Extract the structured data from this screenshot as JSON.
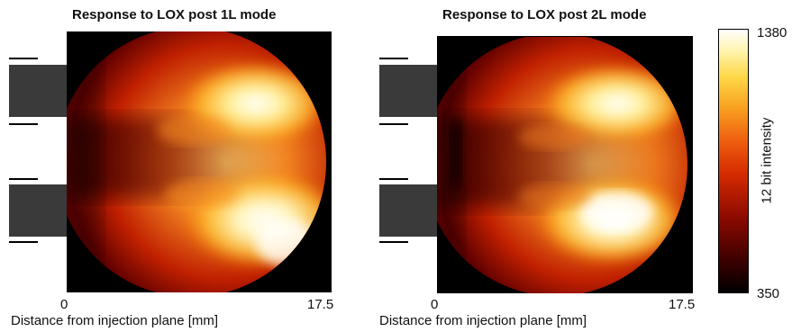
{
  "panels": [
    {
      "title": "Response to LOX post 1L mode",
      "x_tick_min": "0",
      "x_tick_max": "17.5",
      "xlabel": "Distance from injection plane [mm]"
    },
    {
      "title": "Response to LOX post 2L mode",
      "x_tick_min": "0",
      "x_tick_max": "17.5",
      "xlabel": "Distance from injection plane [mm]"
    }
  ],
  "colorbar": {
    "label": "12 bit intensity",
    "max": "1380",
    "min": "350",
    "colors": [
      "#000000",
      "#3a0000",
      "#8a0a00",
      "#d42a00",
      "#f06010",
      "#f8a020",
      "#ffd848",
      "#fff4b0",
      "#ffffff"
    ]
  },
  "colors": {
    "injector_post": "#3a3a3a",
    "injector_lines": "#000000",
    "background": "#000000"
  }
}
